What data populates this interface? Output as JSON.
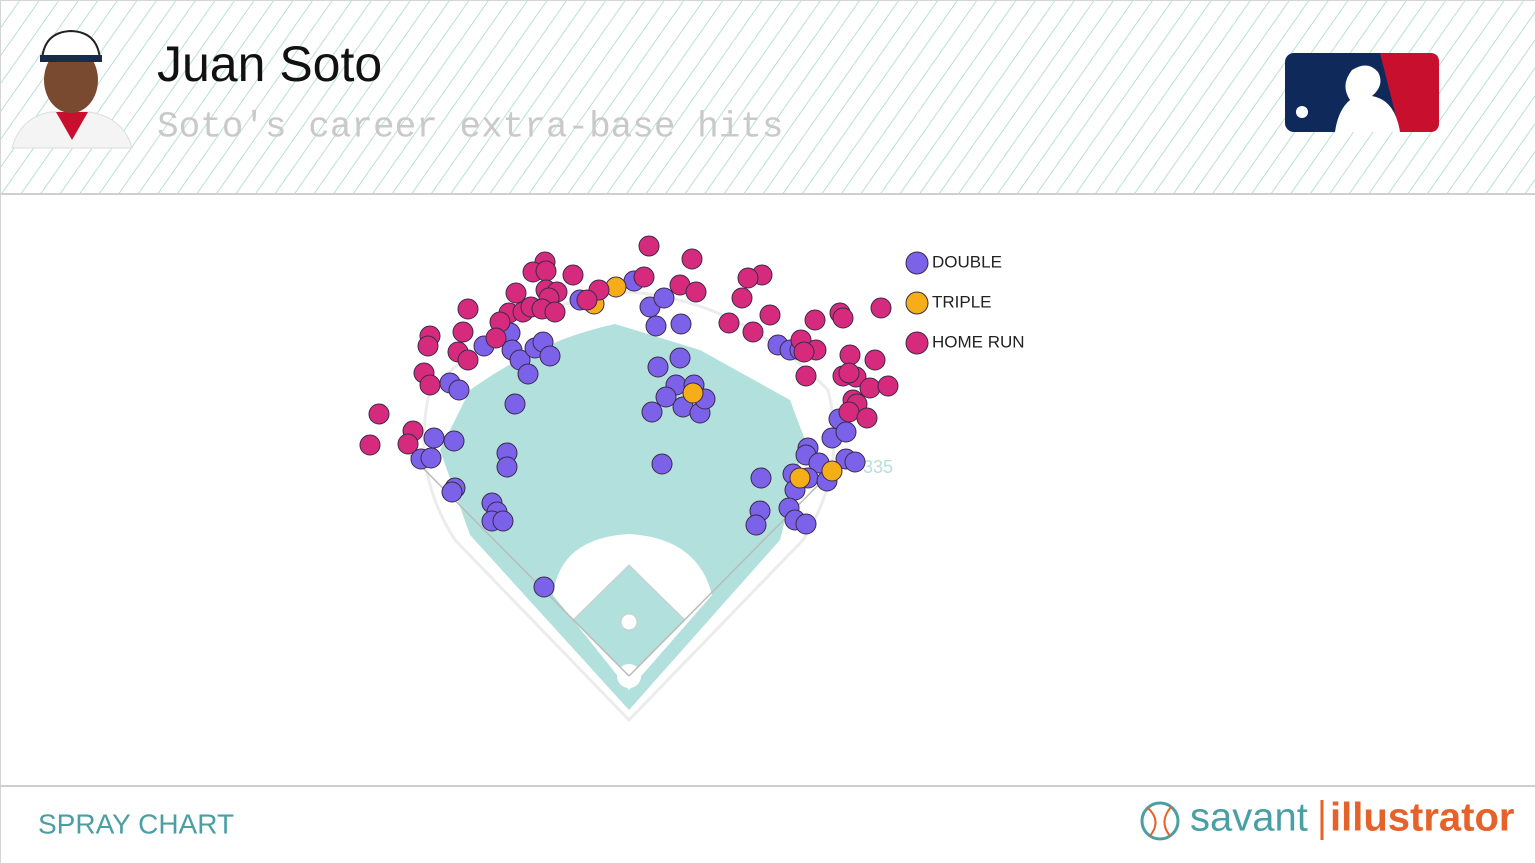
{
  "chart_data": {
    "type": "scatter",
    "title": "Juan Soto",
    "subtitle": "Soto's career extra-base hits",
    "footer_label": "SPRAY CHART",
    "brand": [
      "savant",
      "illustrator"
    ],
    "fence_label": "335",
    "xlim": [
      -280,
      280
    ],
    "ylim": [
      0,
      440
    ],
    "series": [
      {
        "name": "DOUBLE",
        "color": "#7b62e8",
        "x": [
          5,
          21,
          35,
          27,
          52,
          -49,
          -145,
          -119,
          -117,
          -109,
          -94,
          -86,
          -79,
          -101,
          -179,
          -170,
          -114,
          29,
          51,
          47,
          65,
          37,
          54,
          71,
          76,
          23,
          33,
          -195,
          -175,
          -208,
          -198,
          -122,
          -122,
          -174,
          -177,
          -137,
          -132,
          -137,
          -126,
          -85,
          132,
          149,
          161,
          171,
          210,
          203,
          217,
          179,
          177,
          190,
          217,
          226,
          164,
          179,
          198,
          166,
          160,
          131,
          127,
          166,
          177
        ],
        "y": [
          395,
          369,
          378,
          350,
          352,
          376,
          330,
          343,
          326,
          316,
          328,
          334,
          320,
          302,
          293,
          286,
          272,
          309,
          318,
          291,
          291,
          279,
          269,
          263,
          277,
          264,
          212,
          238,
          235,
          217,
          218,
          223,
          209,
          188,
          184,
          173,
          164,
          155,
          155,
          89,
          198,
          331,
          326,
          326,
          257,
          238,
          244,
          228,
          221,
          213,
          217,
          214,
          202,
          198,
          195,
          186,
          168,
          165,
          151,
          156,
          152
        ]
      },
      {
        "name": "TRIPLE",
        "color": "#f5ae17",
        "x": [
          -13,
          -35,
          64,
          171,
          203
        ],
        "y": [
          389,
          372,
          283,
          198,
          205
        ]
      },
      {
        "name": "HOME RUN",
        "color": "#d62a7c",
        "x": [
          -84,
          20,
          63,
          -96,
          -83,
          -56,
          15,
          133,
          119,
          51,
          67,
          113,
          -113,
          -83,
          -72,
          -30,
          -80,
          -42,
          -161,
          -120,
          -106,
          -98,
          -87,
          -74,
          -129,
          -166,
          -199,
          -201,
          -133,
          -171,
          -161,
          100,
          124,
          141,
          186,
          211,
          214,
          252,
          172,
          187,
          175,
          221,
          246,
          177,
          214,
          227,
          220,
          241,
          259,
          224,
          228,
          220,
          238,
          -205,
          -199,
          -250,
          -216,
          -221,
          -259
        ],
        "y": [
          414,
          430,
          417,
          404,
          405,
          401,
          399,
          401,
          398,
          391,
          384,
          378,
          383,
          386,
          384,
          386,
          378,
          376,
          367,
          363,
          364,
          369,
          367,
          364,
          354,
          344,
          340,
          330,
          338,
          324,
          316,
          353,
          344,
          361,
          356,
          363,
          358,
          368,
          336,
          326,
          324,
          321,
          316,
          300,
          300,
          299,
          303,
          288,
          290,
          276,
          272,
          264,
          258,
          303,
          291,
          262,
          245,
          232,
          231
        ]
      }
    ]
  }
}
